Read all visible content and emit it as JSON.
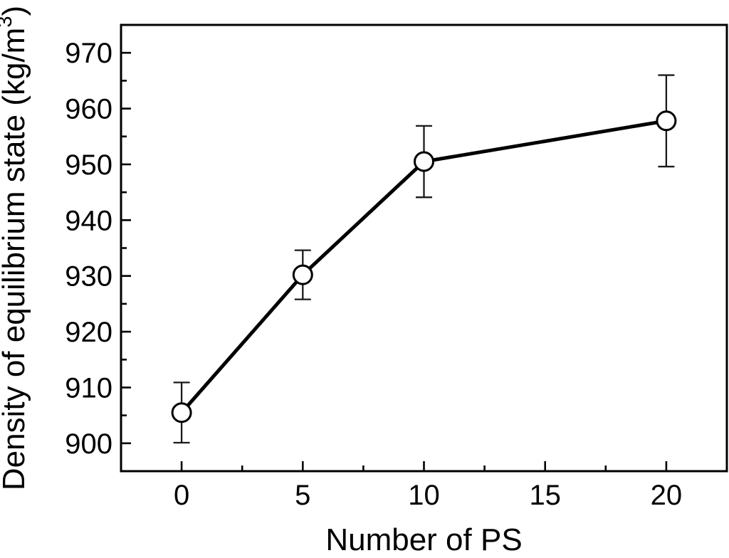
{
  "figure": {
    "background": "#ffffff",
    "foreground": "#000000",
    "error_bar_color": "#1a1a1a",
    "marker_fill": "#ffffff"
  },
  "chart_data": {
    "type": "line",
    "title": "",
    "xlabel": "Number of PS",
    "ylabel": "Density of equilibrium state (kg/m³)",
    "ylabel_parts": {
      "prefix": "Density of equilibrium state (kg/m",
      "superscript": "3",
      "suffix": ")"
    },
    "series": [
      {
        "name": "Density of equilibrium state",
        "x": [
          0,
          5,
          10,
          20
        ],
        "y": [
          905.5,
          930.2,
          950.5,
          957.8
        ],
        "yerr": [
          5.4,
          4.4,
          6.4,
          8.2
        ],
        "marker": "open-circle",
        "color": "#000000"
      }
    ],
    "xlim": [
      -2.5,
      22.5
    ],
    "ylim": [
      895,
      975
    ],
    "x_major_ticks": [
      0,
      5,
      10,
      15,
      20
    ],
    "x_minor_ticks": [
      2.5,
      7.5,
      12.5,
      17.5
    ],
    "y_major_ticks": [
      900,
      910,
      920,
      930,
      940,
      950,
      960,
      970
    ],
    "y_minor_ticks": [
      905,
      915,
      925,
      935,
      945,
      955,
      965
    ],
    "grid": false,
    "legend_position": "none"
  }
}
